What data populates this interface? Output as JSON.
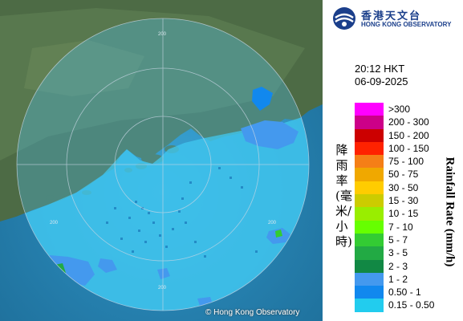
{
  "header": {
    "logo_zh": "香港天文台",
    "logo_en": "HONG KONG OBSERVATORY"
  },
  "observation": {
    "time": "20:12 HKT",
    "date": "06-09-2025"
  },
  "legend": {
    "title_zh": "降雨率(毫米/小時)",
    "title_en": "Rainfall Rate (mm/h)",
    "items": [
      {
        "label": ">300",
        "color": "#ff00ff"
      },
      {
        "label": "200 - 300",
        "color": "#cc0088"
      },
      {
        "label": "150 - 200",
        "color": "#cc0000"
      },
      {
        "label": "100 - 150",
        "color": "#ff2200"
      },
      {
        "label": "75 - 100",
        "color": "#f57f17"
      },
      {
        "label": "50 - 75",
        "color": "#f0a800"
      },
      {
        "label": "30 - 50",
        "color": "#ffcc00"
      },
      {
        "label": "15 - 30",
        "color": "#cccc00"
      },
      {
        "label": "10 - 15",
        "color": "#99ee00"
      },
      {
        "label": "7 - 10",
        "color": "#66ff00"
      },
      {
        "label": "5 - 7",
        "color": "#33cc33"
      },
      {
        "label": "3 - 5",
        "color": "#22aa44"
      },
      {
        "label": "2 - 3",
        "color": "#118844"
      },
      {
        "label": "1 - 2",
        "color": "#4499ee"
      },
      {
        "label": "0.50 - 1",
        "color": "#1188ee"
      },
      {
        "label": "0.15 - 0.50",
        "color": "#22ccee"
      }
    ]
  },
  "map": {
    "range_labels": [
      "200",
      "200",
      "200",
      "200"
    ],
    "copyright": "© Hong Kong Observatory"
  }
}
